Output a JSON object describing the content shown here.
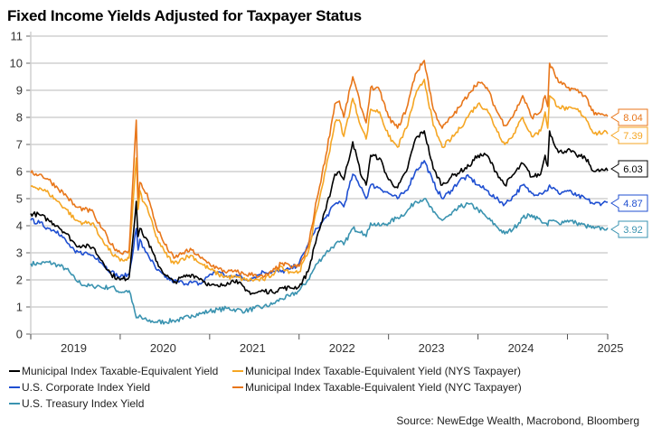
{
  "title": "Fixed Income Yields Adjusted for Taxpayer Status",
  "source": "Source: NewEdge Wealth, Macrobond, Bloomberg",
  "chart_data": {
    "type": "line",
    "title": "Fixed Income Yields Adjusted for Taxpayer Status",
    "xlabel": "",
    "ylabel": "",
    "xlim": [
      2019.0,
      2025.45
    ],
    "ylim": [
      0,
      11
    ],
    "yticks": [
      0,
      1,
      2,
      3,
      4,
      5,
      6,
      7,
      8,
      9,
      10,
      11
    ],
    "xtick_labels": [
      "2019",
      "2020",
      "2021",
      "2022",
      "2023",
      "2024",
      "2025"
    ],
    "grid": true,
    "legend_position": "bottom",
    "x": [
      2019.0,
      2019.1,
      2019.2,
      2019.3,
      2019.4,
      2019.5,
      2019.6,
      2019.7,
      2019.75,
      2019.8,
      2019.9,
      2020.0,
      2020.1,
      2020.18,
      2020.2,
      2020.22,
      2020.25,
      2020.3,
      2020.4,
      2020.5,
      2020.6,
      2020.7,
      2020.8,
      2020.9,
      2021.0,
      2021.1,
      2021.2,
      2021.3,
      2021.4,
      2021.5,
      2021.6,
      2021.7,
      2021.8,
      2021.9,
      2022.0,
      2022.1,
      2022.2,
      2022.3,
      2022.4,
      2022.45,
      2022.5,
      2022.6,
      2022.7,
      2022.75,
      2022.8,
      2022.9,
      2023.0,
      2023.1,
      2023.2,
      2023.3,
      2023.4,
      2023.5,
      2023.6,
      2023.7,
      2023.8,
      2023.9,
      2024.0,
      2024.1,
      2024.2,
      2024.3,
      2024.4,
      2024.5,
      2024.6,
      2024.7,
      2024.75,
      2024.78,
      2024.8,
      2024.9,
      2025.0,
      2025.1,
      2025.2,
      2025.3,
      2025.4,
      2025.45
    ],
    "series": [
      {
        "name": "Municipal Index Taxable-Equivalent Yield",
        "color": "#000000",
        "last_value": 6.03,
        "values": [
          4.45,
          4.4,
          4.2,
          4.0,
          3.7,
          3.3,
          3.25,
          3.2,
          2.9,
          2.7,
          2.2,
          2.0,
          2.1,
          4.9,
          3.6,
          3.9,
          3.7,
          3.5,
          2.7,
          2.2,
          1.9,
          2.1,
          2.2,
          2.05,
          1.8,
          1.75,
          1.9,
          2.0,
          1.6,
          1.5,
          1.6,
          1.55,
          1.7,
          1.7,
          1.75,
          2.3,
          3.6,
          4.6,
          5.9,
          6.0,
          5.7,
          7.1,
          5.8,
          5.5,
          6.6,
          6.5,
          5.7,
          5.4,
          6.0,
          7.2,
          7.5,
          6.1,
          5.5,
          5.8,
          6.0,
          6.2,
          6.6,
          6.6,
          6.0,
          5.5,
          5.9,
          6.3,
          5.8,
          5.9,
          6.6,
          6.2,
          7.5,
          6.7,
          6.8,
          6.6,
          6.5,
          6.0,
          6.05,
          6.03
        ]
      },
      {
        "name": "Municipal Index Taxable-Equivalent Yield (NYS Taxpayer)",
        "color": "#F5A623",
        "last_value": 7.39,
        "values": [
          5.45,
          5.4,
          5.2,
          4.9,
          4.6,
          4.2,
          4.1,
          4.1,
          3.7,
          3.5,
          3.0,
          2.7,
          2.8,
          6.5,
          4.6,
          5.3,
          4.9,
          4.7,
          3.6,
          3.0,
          2.6,
          2.8,
          2.9,
          2.6,
          2.4,
          2.2,
          2.1,
          2.1,
          2.0,
          2.0,
          2.0,
          2.2,
          2.5,
          2.3,
          2.3,
          3.0,
          4.6,
          6.1,
          7.8,
          7.9,
          7.3,
          8.7,
          7.6,
          7.2,
          8.3,
          8.2,
          7.3,
          6.9,
          7.6,
          8.8,
          9.4,
          7.7,
          6.9,
          7.2,
          7.6,
          8.1,
          8.5,
          8.3,
          7.6,
          7.0,
          7.4,
          8.0,
          7.3,
          7.5,
          8.2,
          7.6,
          8.8,
          8.4,
          8.3,
          8.3,
          8.0,
          7.4,
          7.45,
          7.39
        ]
      },
      {
        "name": "U.S. Corporate Index Yield",
        "color": "#1F4FD1",
        "last_value": 4.87,
        "values": [
          4.2,
          4.1,
          3.9,
          3.8,
          3.4,
          3.0,
          3.0,
          2.9,
          2.8,
          2.6,
          2.3,
          2.1,
          2.2,
          3.9,
          3.1,
          3.5,
          3.2,
          3.0,
          2.4,
          2.1,
          1.95,
          1.9,
          1.9,
          1.85,
          2.2,
          2.3,
          2.1,
          2.2,
          2.0,
          2.1,
          2.3,
          2.3,
          2.3,
          2.4,
          2.6,
          3.3,
          3.9,
          4.3,
          4.8,
          4.9,
          4.7,
          5.9,
          5.4,
          5.0,
          5.5,
          5.4,
          5.2,
          5.0,
          5.3,
          6.0,
          6.4,
          5.6,
          5.0,
          5.3,
          5.7,
          5.8,
          5.5,
          5.3,
          5.0,
          4.8,
          5.1,
          5.5,
          5.2,
          5.2,
          5.3,
          5.3,
          5.5,
          5.2,
          5.3,
          5.1,
          5.0,
          4.8,
          4.85,
          4.87
        ]
      },
      {
        "name": "Municipal Index Taxable-Equivalent Yield (NYC Taxpayer)",
        "color": "#E8761A",
        "last_value": 8.04,
        "values": [
          5.95,
          5.9,
          5.7,
          5.4,
          5.1,
          4.7,
          4.6,
          4.5,
          4.1,
          3.9,
          3.3,
          3.0,
          3.1,
          7.9,
          5.0,
          5.6,
          5.4,
          5.2,
          4.0,
          3.3,
          2.8,
          3.0,
          3.1,
          2.8,
          2.6,
          2.4,
          2.3,
          2.3,
          2.2,
          2.2,
          2.1,
          2.3,
          2.6,
          2.5,
          2.5,
          3.2,
          5.0,
          6.6,
          8.5,
          8.6,
          8.0,
          9.5,
          8.3,
          7.8,
          9.1,
          9.0,
          8.0,
          7.6,
          8.3,
          9.6,
          10.1,
          8.3,
          7.6,
          8.0,
          8.4,
          8.9,
          9.3,
          9.1,
          8.3,
          7.7,
          8.1,
          8.8,
          8.0,
          8.2,
          8.8,
          8.4,
          10.0,
          9.3,
          9.1,
          9.0,
          8.8,
          8.1,
          8.1,
          8.04
        ]
      },
      {
        "name": "U.S. Treasury Index Yield",
        "color": "#3A93B0",
        "last_value": 3.92,
        "values": [
          2.6,
          2.6,
          2.65,
          2.55,
          2.4,
          2.0,
          1.8,
          1.75,
          1.8,
          1.7,
          1.75,
          1.55,
          1.6,
          0.6,
          0.6,
          0.7,
          0.55,
          0.5,
          0.45,
          0.45,
          0.5,
          0.55,
          0.7,
          0.75,
          0.85,
          0.9,
          0.95,
          0.9,
          0.85,
          0.95,
          1.0,
          1.1,
          1.3,
          1.4,
          1.6,
          2.0,
          2.6,
          3.0,
          3.3,
          3.4,
          3.3,
          3.9,
          3.8,
          3.6,
          4.1,
          4.0,
          4.1,
          4.3,
          4.5,
          4.9,
          5.0,
          4.5,
          4.2,
          4.4,
          4.7,
          4.8,
          4.6,
          4.3,
          4.0,
          3.7,
          3.9,
          4.3,
          4.4,
          4.2,
          4.1,
          4.0,
          4.2,
          4.1,
          4.2,
          4.1,
          4.0,
          3.9,
          3.9,
          3.92
        ]
      }
    ]
  },
  "legend": [
    {
      "label": "Municipal Index Taxable-Equivalent Yield",
      "color": "#000000"
    },
    {
      "label": "Municipal Index Taxable-Equivalent Yield (NYS Taxpayer)",
      "color": "#F5A623"
    },
    {
      "label": "U.S. Corporate Index Yield",
      "color": "#1F4FD1"
    },
    {
      "label": "Municipal Index Taxable-Equivalent Yield (NYC Taxpayer)",
      "color": "#E8761A"
    },
    {
      "label": "U.S. Treasury Index Yield",
      "color": "#3A93B0"
    }
  ],
  "end_labels": [
    {
      "text": "8.04",
      "color": "#E8761A"
    },
    {
      "text": "7.39",
      "color": "#F5A623"
    },
    {
      "text": "6.03",
      "color": "#000000"
    },
    {
      "text": "4.87",
      "color": "#1F4FD1"
    },
    {
      "text": "3.92",
      "color": "#3A93B0"
    }
  ]
}
